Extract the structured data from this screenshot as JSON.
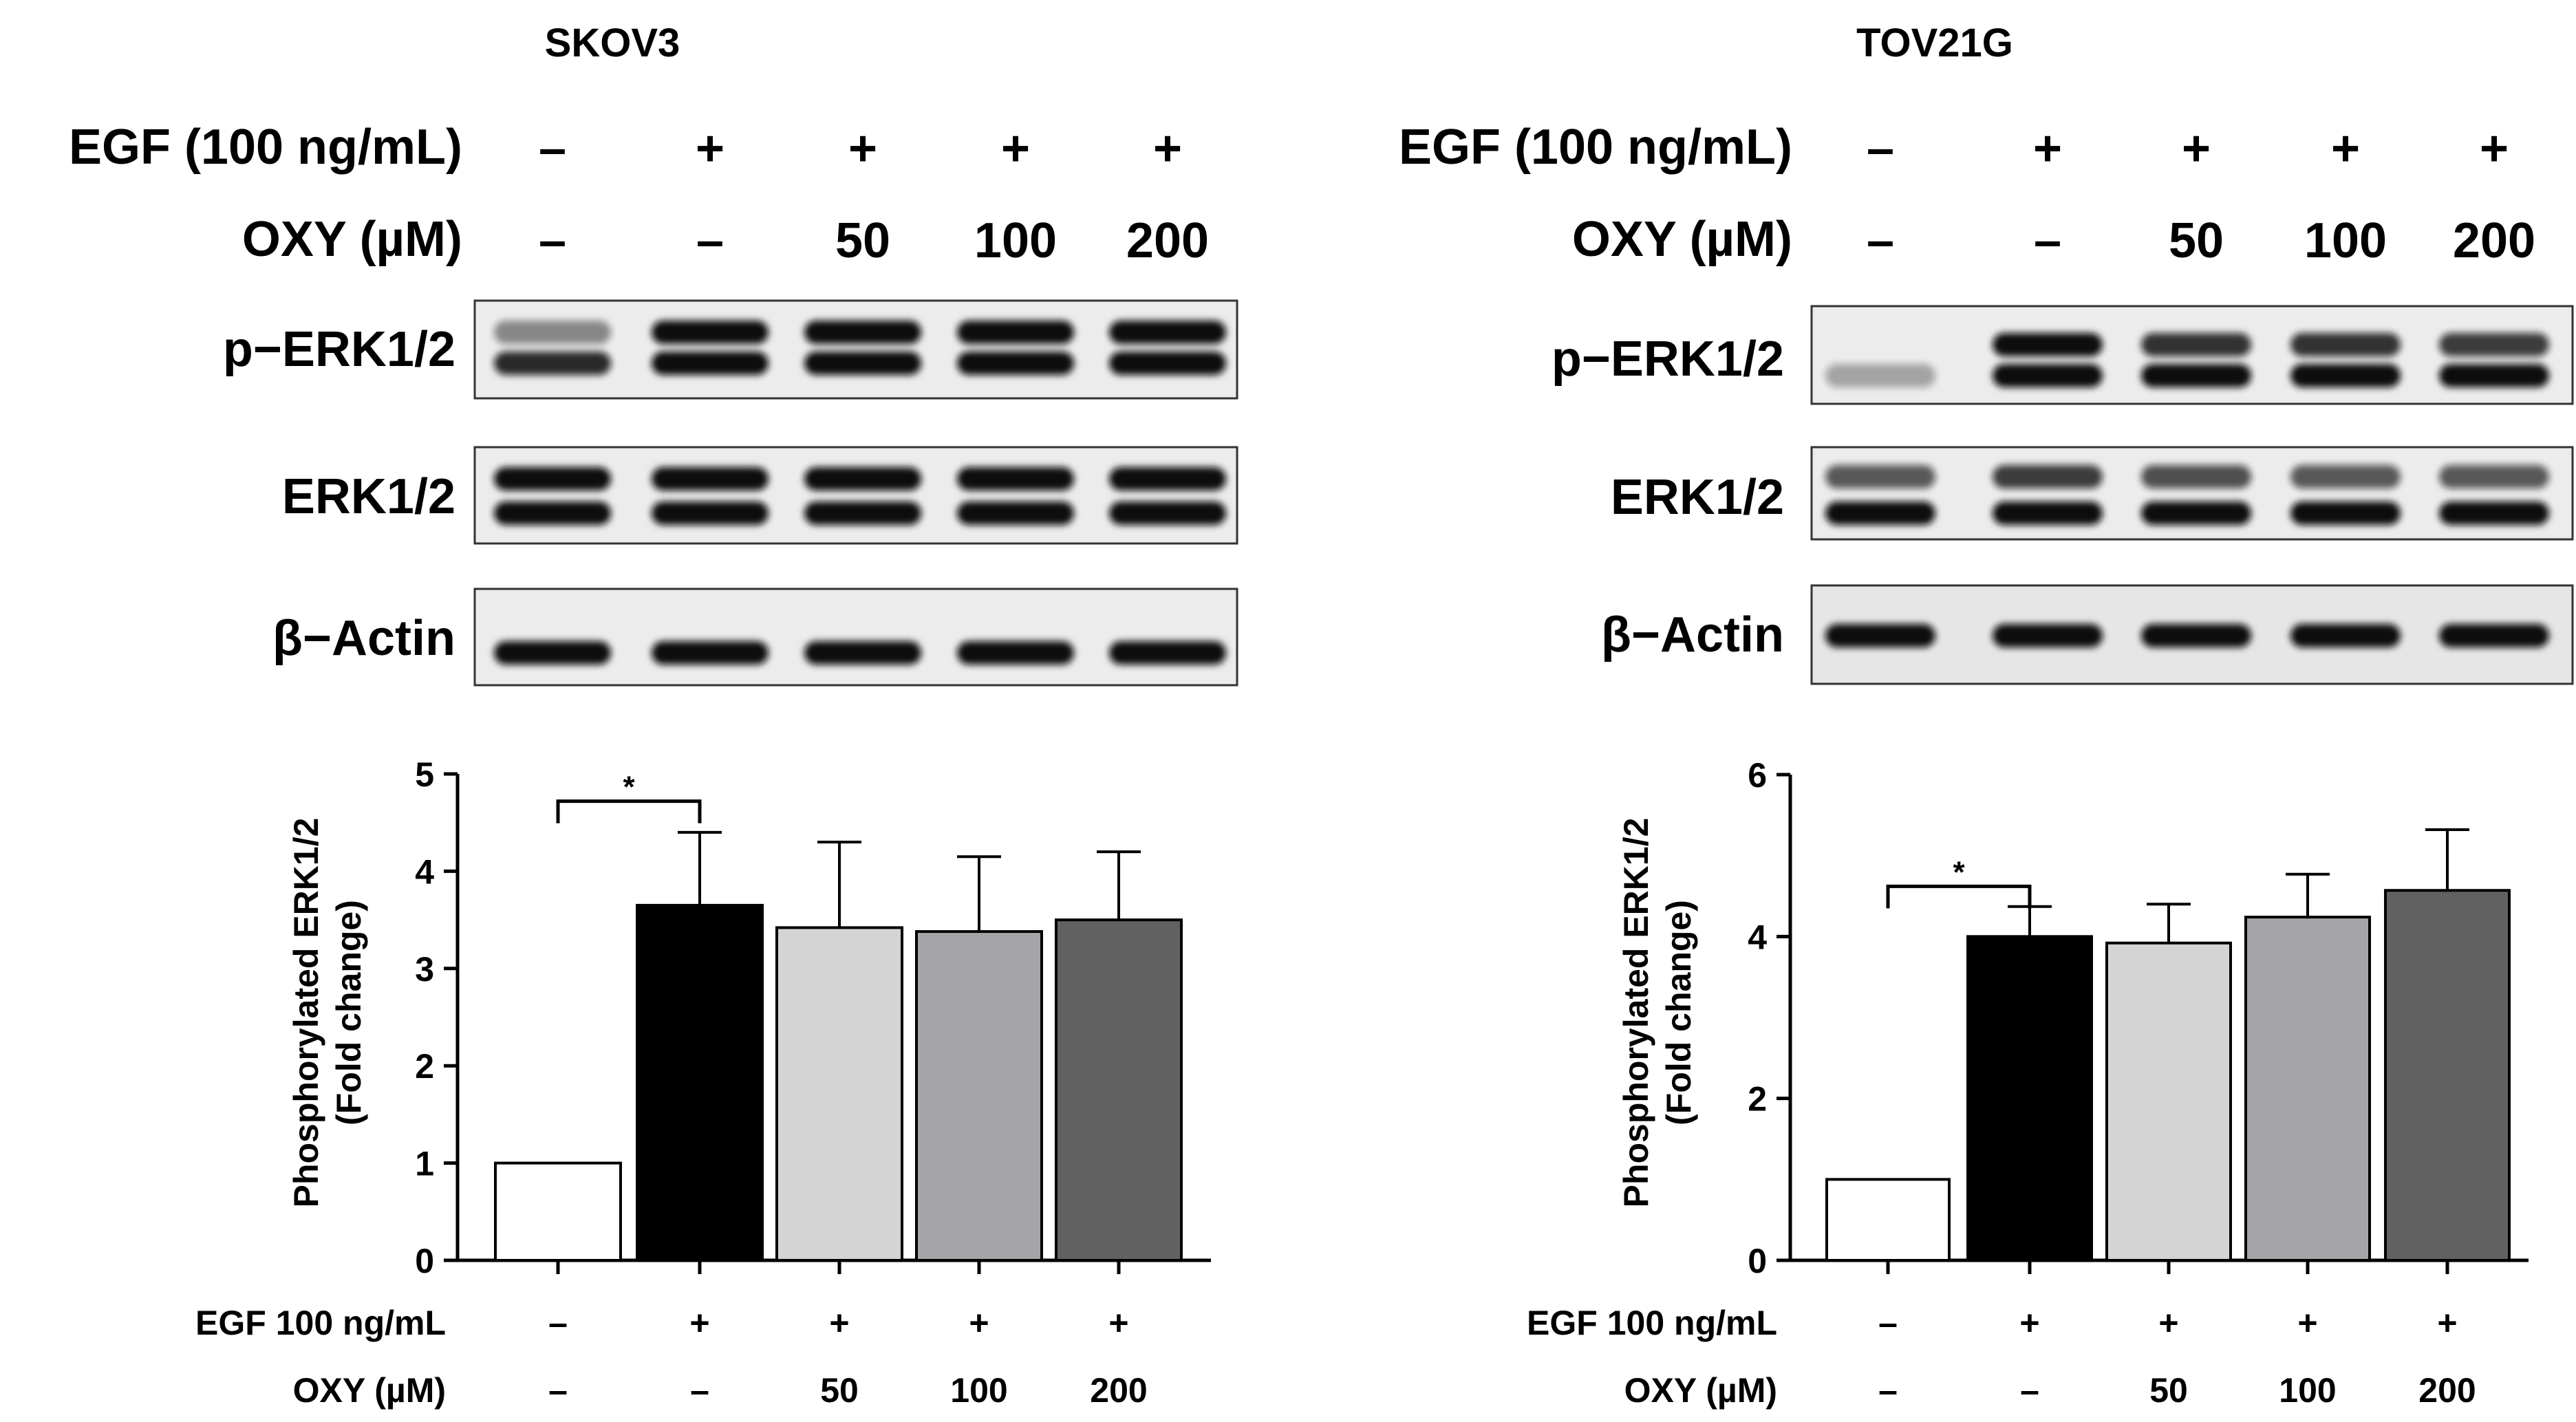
{
  "panels": [
    {
      "title": "SKOV3",
      "treatment_rows": [
        {
          "label": "EGF (100 ng/mL)",
          "values": [
            "–",
            "+",
            "+",
            "+",
            "+"
          ]
        },
        {
          "label": "OXY (µM)",
          "values": [
            "–",
            "–",
            "50",
            "100",
            "200"
          ]
        }
      ],
      "blot_labels": [
        "p−ERK1/2",
        "ERK1/2",
        "β−Actin"
      ],
      "x_rows": [
        {
          "label": "EGF 100 ng/mL",
          "values": [
            "–",
            "+",
            "+",
            "+",
            "+"
          ]
        },
        {
          "label": "OXY (µM)",
          "values": [
            "–",
            "–",
            "50",
            "100",
            "200"
          ]
        }
      ],
      "significance": "*"
    },
    {
      "title": "TOV21G",
      "treatment_rows": [
        {
          "label": "EGF (100 ng/mL)",
          "values": [
            "–",
            "+",
            "+",
            "+",
            "+"
          ]
        },
        {
          "label": "OXY (µM)",
          "values": [
            "–",
            "–",
            "50",
            "100",
            "200"
          ]
        }
      ],
      "blot_labels": [
        "p−ERK1/2",
        "ERK1/2",
        "β−Actin"
      ],
      "x_rows": [
        {
          "label": "EGF 100 ng/mL",
          "values": [
            "–",
            "+",
            "+",
            "+",
            "+"
          ]
        },
        {
          "label": "OXY (µM)",
          "values": [
            "–",
            "–",
            "50",
            "100",
            "200"
          ]
        }
      ],
      "significance": "*"
    }
  ],
  "chart_data": [
    {
      "type": "bar",
      "title": "",
      "ylabel": "Phosphorylated ERK1/2 (Fold change)",
      "ylim": [
        0,
        5
      ],
      "yticks": [
        0,
        1,
        2,
        3,
        4,
        5
      ],
      "values": [
        1.0,
        3.65,
        3.42,
        3.38,
        3.5
      ],
      "errors": [
        0,
        0.75,
        0.88,
        0.77,
        0.7
      ],
      "bar_colors": [
        "#ffffff",
        "#000000",
        "#d4d4d4",
        "#a5a5a8",
        "#616161"
      ],
      "significance": {
        "between": [
          0,
          1
        ],
        "label": "*"
      }
    },
    {
      "type": "bar",
      "title": "",
      "ylabel": "Phosphorylated ERK1/2 (Fold change)",
      "ylim": [
        0,
        6
      ],
      "yticks": [
        0,
        2,
        4,
        6
      ],
      "values": [
        1.0,
        4.0,
        3.92,
        4.24,
        4.57
      ],
      "errors": [
        0,
        0.37,
        0.48,
        0.53,
        0.75
      ],
      "bar_colors": [
        "#ffffff",
        "#000000",
        "#d4d4d4",
        "#a5a5a8",
        "#616161"
      ],
      "significance": {
        "between": [
          0,
          1
        ],
        "label": "*"
      }
    }
  ]
}
